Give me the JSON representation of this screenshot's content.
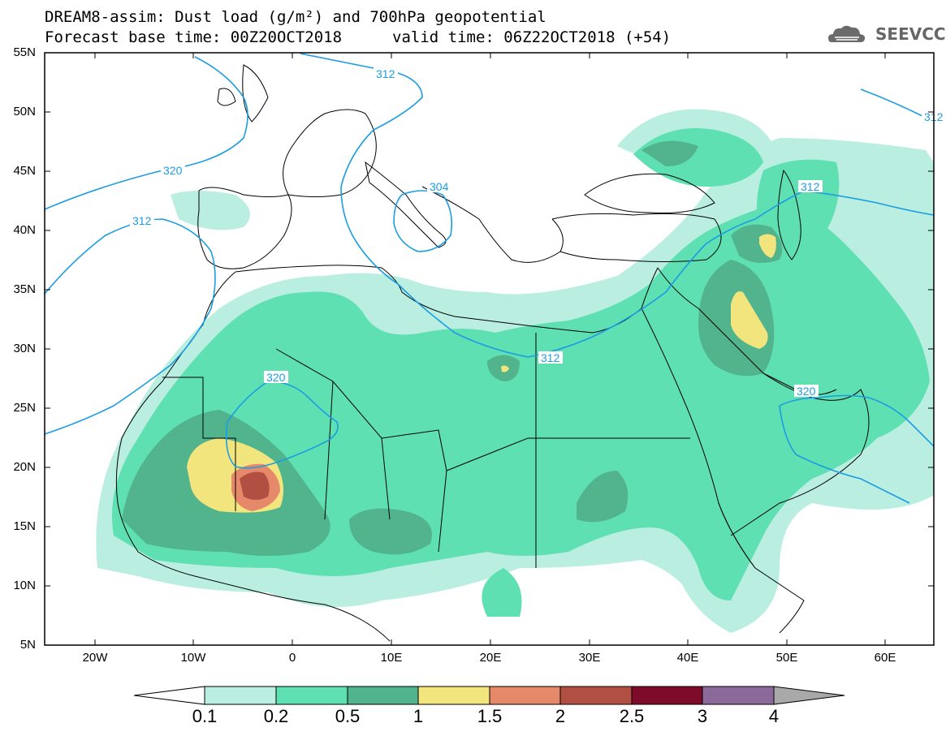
{
  "title": {
    "line1": "DREAM8-assim: Dust load (g/m²) and 700hPa geopotential",
    "line2": "Forecast base time: 00Z20OCT2018",
    "valid": "valid time: 06Z22OCT2018 (+54)"
  },
  "logo": {
    "icon": "cloud-logo-icon",
    "text": "SEEVCCC"
  },
  "axes": {
    "lat_labels": [
      "55N",
      "50N",
      "45N",
      "40N",
      "35N",
      "30N",
      "25N",
      "20N",
      "15N",
      "10N",
      "5N"
    ],
    "lon_labels": [
      "20W",
      "10W",
      "0",
      "10E",
      "20E",
      "30E",
      "40E",
      "50E",
      "60E"
    ]
  },
  "contours": {
    "labels": [
      "312",
      "320",
      "312",
      "304",
      "312",
      "320",
      "312",
      "312",
      "320"
    ]
  },
  "colorbar": {
    "labels": [
      "0.1",
      "0.2",
      "0.5",
      "1",
      "1.5",
      "2",
      "2.5",
      "3",
      "4"
    ],
    "colors": [
      "#ffffff",
      "#b9eee0",
      "#5fe0b2",
      "#52b48d",
      "#f3e57d",
      "#e5896a",
      "#b24f43",
      "#7f0b2a",
      "#8b6a9b",
      "#a9a9a9"
    ]
  },
  "map_colors": {
    "contour_line": "#1b9de2",
    "coastline": "#000000"
  }
}
